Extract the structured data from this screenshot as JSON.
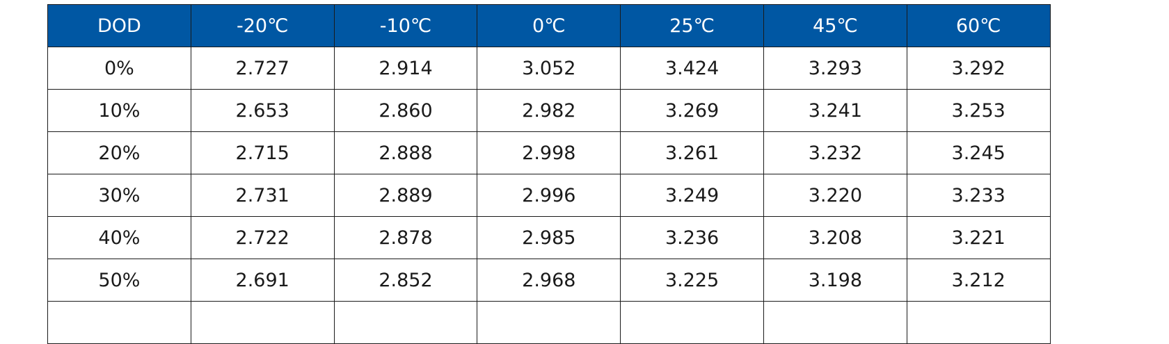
{
  "table": {
    "header_color": "#0057a3",
    "headers": [
      "DOD",
      "-20℃",
      "-10℃",
      "0℃",
      "25℃",
      "45℃",
      "60℃"
    ],
    "rows": [
      [
        "0%",
        "2.727",
        "2.914",
        "3.052",
        "3.424",
        "3.293",
        "3.292"
      ],
      [
        "10%",
        "2.653",
        "2.860",
        "2.982",
        "3.269",
        "3.241",
        "3.253"
      ],
      [
        "20%",
        "2.715",
        "2.888",
        "2.998",
        "3.261",
        "3.232",
        "3.245"
      ],
      [
        "30%",
        "2.731",
        "2.889",
        "2.996",
        "3.249",
        "3.220",
        "3.233"
      ],
      [
        "40%",
        "2.722",
        "2.878",
        "2.985",
        "3.236",
        "3.208",
        "3.221"
      ],
      [
        "50%",
        "2.691",
        "2.852",
        "2.968",
        "3.225",
        "3.198",
        "3.212"
      ]
    ]
  }
}
